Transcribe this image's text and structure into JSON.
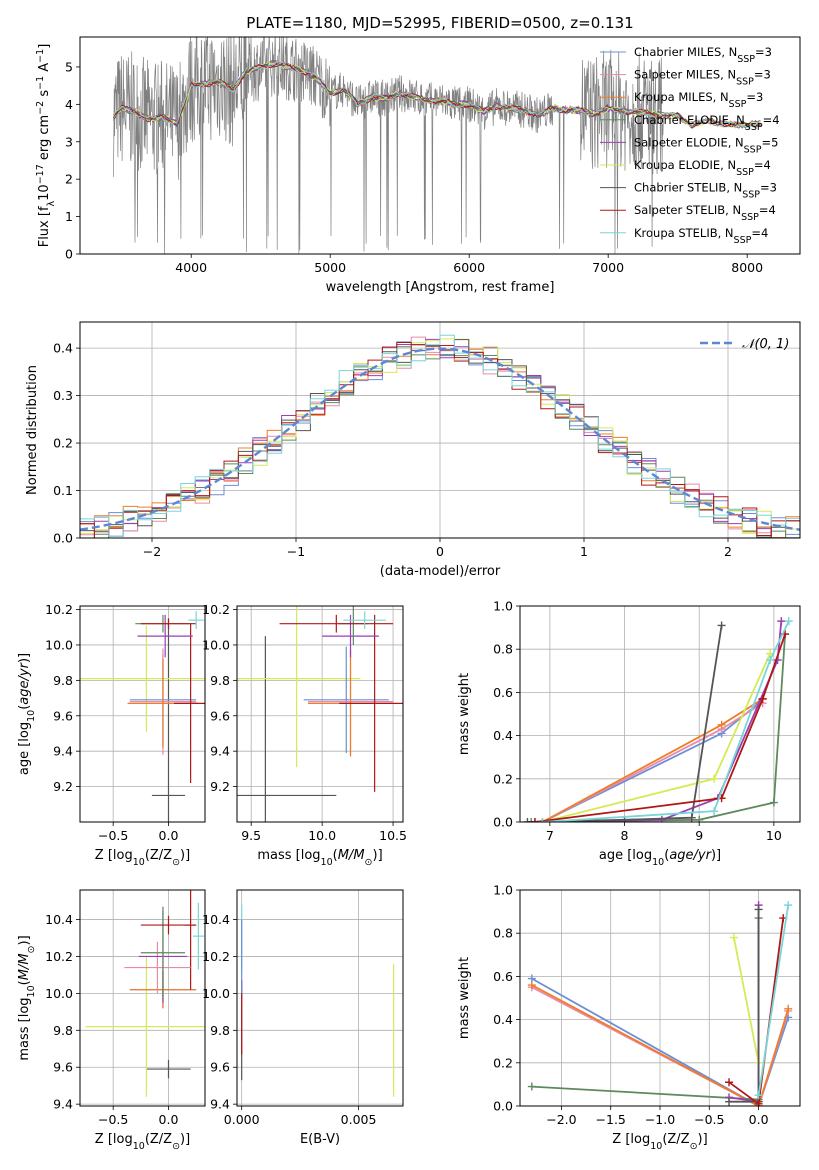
{
  "title": "PLATE=1180, MJD=52995, FIBERID=0500, z=0.131",
  "colors": {
    "Chabrier MILES": "#6a8fd8",
    "Salpeter MILES": "#e98aa8",
    "Kroupa MILES": "#f07c2a",
    "Chabrier ELODIE": "#5e8a5e",
    "Salpeter ELODIE": "#9b3fb3",
    "Kroupa ELODIE": "#d6ea55",
    "Chabrier STELIB": "#555555",
    "Salpeter STELIB": "#b01818",
    "Kroupa STELIB": "#79d6d8"
  },
  "chart_data": [
    {
      "id": "spectrum",
      "type": "line",
      "title": "PLATE=1180, MJD=52995, FIBERID=0500, z=0.131",
      "xlabel": "wavelength [Angstrom, rest frame]",
      "ylabel_parts": {
        "pre": "Flux [f",
        "sub": "λ",
        "mid": "10",
        "sup1": "−17",
        "mid2": " erg cm",
        "sup2": "−2",
        "mid3": " s",
        "sup3": "−1",
        "mid4": " A",
        "sup4": "−1",
        "post": "]"
      },
      "xlim": [
        3200,
        8380
      ],
      "ylim": [
        0,
        5.8
      ],
      "xticks": [
        4000,
        5000,
        6000,
        7000,
        8000
      ],
      "yticks": [
        0,
        1,
        2,
        3,
        4,
        5
      ],
      "grid": false,
      "legend_placement": "top-right",
      "legend": [
        {
          "pre": "Chabrier MILES, N",
          "sub": "SSP",
          "post": "=3"
        },
        {
          "pre": "Salpeter MILES, N",
          "sub": "SSP",
          "post": "=3"
        },
        {
          "pre": "Kroupa MILES, N",
          "sub": "SSP",
          "post": "=3"
        },
        {
          "pre": "Chabrier ELODIE, N",
          "sub": "SSP",
          "post": "=4"
        },
        {
          "pre": "Salpeter ELODIE, N",
          "sub": "SSP",
          "post": "=5"
        },
        {
          "pre": "Kroupa ELODIE, N",
          "sub": "SSP",
          "post": "=4"
        },
        {
          "pre": "Chabrier STELIB, N",
          "sub": "SSP",
          "post": "=3"
        },
        {
          "pre": "Salpeter STELIB, N",
          "sub": "SSP",
          "post": "=4"
        },
        {
          "pre": "Kroupa STELIB, N",
          "sub": "SSP",
          "post": "=4"
        }
      ],
      "model_continuum": {
        "x": [
          3400,
          3500,
          3600,
          3700,
          3800,
          3900,
          4000,
          4100,
          4200,
          4300,
          4400,
          4500,
          4600,
          4700,
          4800,
          4900,
          5000,
          5100,
          5200,
          5300,
          5400,
          5500,
          5600,
          5700,
          5800,
          5900,
          6000,
          6100,
          6200,
          6300,
          6400,
          6500,
          6600,
          6700,
          6800,
          6900,
          7000,
          7100,
          7200,
          7300,
          7400,
          7500,
          7600,
          7700,
          7800,
          7900,
          8000,
          8100
        ],
        "y": [
          3.5,
          3.9,
          3.8,
          3.6,
          3.65,
          3.5,
          4.5,
          4.55,
          4.6,
          4.4,
          4.9,
          5.0,
          5.1,
          5.0,
          4.9,
          4.7,
          4.3,
          4.4,
          4.0,
          4.2,
          4.15,
          4.3,
          4.2,
          4.1,
          4.1,
          4.0,
          4.0,
          3.8,
          3.95,
          3.9,
          3.85,
          3.7,
          3.9,
          3.85,
          3.85,
          3.75,
          3.9,
          3.8,
          3.8,
          3.75,
          3.7,
          3.7,
          3.45,
          3.55,
          3.5,
          3.45,
          3.45,
          3.5
        ]
      }
    },
    {
      "id": "residuals",
      "type": "step",
      "xlabel": "(data-model)/error",
      "ylabel": "Normed distribution",
      "xlim": [
        -2.5,
        2.5
      ],
      "ylim": [
        0,
        0.455
      ],
      "xticks": [
        -2,
        -1,
        0,
        1,
        2
      ],
      "yticks": [
        0.0,
        0.1,
        0.2,
        0.3,
        0.4
      ],
      "grid": true,
      "legend_placement": "top-right",
      "normal_label": "𝒩(0, 1)",
      "normal_color": "#5b88d6"
    },
    {
      "id": "age-vs-Z",
      "type": "errorbar",
      "xlabel_parts": {
        "pre": "Z [log",
        "sub": "10",
        "mid": "(Z/Z",
        "sub2": "⊙",
        "post": ")]"
      },
      "ylabel_parts": {
        "pre": "age  [log",
        "sub": "10",
        "mid": "(",
        "it": "age/yr",
        "post": ")]"
      },
      "xlim": [
        -0.8,
        0.33
      ],
      "ylim": [
        9.0,
        10.22
      ],
      "xticks": [
        -0.5,
        0.0
      ],
      "yticks": [
        9.2,
        9.4,
        9.6,
        9.8,
        10.0,
        10.2
      ],
      "grid": true,
      "points": [
        {
          "s": "Chabrier STELIB",
          "x": 0.0,
          "xe": 0.15,
          "y": 9.15,
          "ye": 1.0
        },
        {
          "s": "Kroupa ELODIE",
          "x": -0.2,
          "xe": 0.6,
          "y": 9.81,
          "ye": 0.3
        },
        {
          "s": "Chabrier MILES",
          "x": -0.05,
          "xe": 0.3,
          "y": 9.69,
          "ye": 0.26
        },
        {
          "s": "Salpeter MILES",
          "x": -0.05,
          "xe": 0.3,
          "y": 9.68,
          "ye": 0.3
        },
        {
          "s": "Kroupa MILES",
          "x": -0.05,
          "xe": 0.32,
          "y": 9.67,
          "ye": 0.25
        },
        {
          "s": "Salpeter STELIB",
          "x": 0.2,
          "xe": 0.15,
          "y": 9.67,
          "ye": 0.45
        },
        {
          "s": "Salpeter ELODIE",
          "x": -0.03,
          "xe": 0.25,
          "y": 10.05,
          "ye": 0.12
        },
        {
          "s": "Chabrier ELODIE",
          "x": -0.05,
          "xe": 0.25,
          "y": 10.12,
          "ye": 0.05
        },
        {
          "s": "Salpeter STELIB",
          "x": 0.0,
          "xe": 0.25,
          "y": 10.12,
          "ye": 0.03
        },
        {
          "s": "Kroupa STELIB",
          "x": 0.25,
          "xe": 0.07,
          "y": 10.14,
          "ye": 0.05
        }
      ]
    },
    {
      "id": "age-vs-mass",
      "type": "errorbar",
      "xlabel_parts": {
        "pre": "mass [log",
        "sub": "10",
        "mid": "(",
        "it": "M/M",
        "sub2": "⊙",
        "post": ")]"
      },
      "xlim": [
        9.4,
        10.57
      ],
      "ylim": [
        9.0,
        10.22
      ],
      "xticks": [
        9.5,
        10.0,
        10.5
      ],
      "yticks": [
        9.2,
        9.4,
        9.6,
        9.8,
        10.0,
        10.2
      ],
      "grid": true,
      "points": [
        {
          "s": "Chabrier STELIB",
          "x": 9.6,
          "xe": 0.5,
          "y": 9.15,
          "ye": 0.9
        },
        {
          "s": "Kroupa ELODIE",
          "x": 9.82,
          "xe": 0.45,
          "y": 9.81,
          "ye": 0.5
        },
        {
          "s": "Chabrier MILES",
          "x": 10.17,
          "xe": 0.3,
          "y": 9.69,
          "ye": 0.3
        },
        {
          "s": "Salpeter MILES",
          "x": 10.2,
          "xe": 0.3,
          "y": 9.68,
          "ye": 0.3
        },
        {
          "s": "Kroupa MILES",
          "x": 10.2,
          "xe": 0.3,
          "y": 9.67,
          "ye": 0.3
        },
        {
          "s": "Salpeter STELIB",
          "x": 10.37,
          "xe": 0.25,
          "y": 9.67,
          "ye": 0.5
        },
        {
          "s": "Salpeter ELODIE",
          "x": 10.2,
          "xe": 0.2,
          "y": 10.05,
          "ye": 0.12
        },
        {
          "s": "Chabrier ELODIE",
          "x": 10.22,
          "xe": 0.1,
          "y": 10.12,
          "ye": 0.12
        },
        {
          "s": "Salpeter STELIB",
          "x": 10.1,
          "xe": 0.4,
          "y": 10.12,
          "ye": 0.05
        },
        {
          "s": "Kroupa STELIB",
          "x": 10.3,
          "xe": 0.15,
          "y": 10.14,
          "ye": 0.05
        }
      ]
    },
    {
      "id": "weight-vs-age",
      "type": "line",
      "xlabel_parts": {
        "pre": "age  [log",
        "sub": "10",
        "mid": "(",
        "it": "age/yr",
        "post": ")]"
      },
      "ylabel": "mass weight",
      "xlim": [
        6.6,
        10.35
      ],
      "ylim": [
        0,
        1.0
      ],
      "xticks": [
        7,
        8,
        9,
        10
      ],
      "yticks": [
        0.0,
        0.2,
        0.4,
        0.6,
        0.8,
        1.0
      ],
      "grid": true,
      "series": [
        {
          "s": "Chabrier MILES",
          "x": [
            6.9,
            9.3,
            9.8
          ],
          "y": [
            0.0,
            0.41,
            0.55
          ]
        },
        {
          "s": "Salpeter MILES",
          "x": [
            6.9,
            9.3,
            9.85
          ],
          "y": [
            0.0,
            0.43,
            0.55
          ]
        },
        {
          "s": "Kroupa MILES",
          "x": [
            6.9,
            9.3,
            9.85
          ],
          "y": [
            0.0,
            0.45,
            0.57
          ]
        },
        {
          "s": "Chabrier ELODIE",
          "x": [
            6.75,
            9.0,
            10.0,
            10.15
          ],
          "y": [
            0.0,
            0.01,
            0.09,
            0.87
          ]
        },
        {
          "s": "Salpeter ELODIE",
          "x": [
            6.8,
            8.5,
            9.25,
            10.05,
            10.1
          ],
          "y": [
            0.0,
            0.01,
            0.11,
            0.75,
            0.93
          ]
        },
        {
          "s": "Kroupa ELODIE",
          "x": [
            6.9,
            9.2,
            9.95
          ],
          "y": [
            0.0,
            0.2,
            0.78
          ]
        },
        {
          "s": "Chabrier STELIB",
          "x": [
            6.7,
            8.0,
            8.9,
            9.3
          ],
          "y": [
            0.0,
            0.01,
            0.02,
            0.91
          ]
        },
        {
          "s": "Salpeter STELIB",
          "x": [
            6.8,
            9.3,
            9.85,
            10.15
          ],
          "y": [
            0.0,
            0.11,
            0.57,
            0.87
          ]
        },
        {
          "s": "Kroupa STELIB",
          "x": [
            6.9,
            9.2,
            9.95,
            10.2
          ],
          "y": [
            0.0,
            0.05,
            0.75,
            0.93
          ]
        }
      ]
    },
    {
      "id": "mass-vs-Z",
      "type": "errorbar",
      "xlabel_parts": {
        "pre": "Z [log",
        "sub": "10",
        "mid": "(Z/Z",
        "sub2": "⊙",
        "post": ")]"
      },
      "ylabel_parts": {
        "pre": "mass [log",
        "sub": "10",
        "mid": "(",
        "it": "M/M",
        "sub2": "⊙",
        "post": ")]"
      },
      "xlim": [
        -0.8,
        0.33
      ],
      "ylim": [
        9.39,
        10.56
      ],
      "xticks": [
        -0.5,
        0.0
      ],
      "yticks": [
        9.4,
        9.6,
        9.8,
        10.0,
        10.2,
        10.4
      ],
      "grid": true,
      "points": [
        {
          "s": "Chabrier STELIB",
          "x": 0.0,
          "xe": 0.2,
          "y": 9.59,
          "ye": 0.05
        },
        {
          "s": "Kroupa ELODIE",
          "x": -0.2,
          "xe": 0.55,
          "y": 9.82,
          "ye": 0.38
        },
        {
          "s": "Chabrier MILES",
          "x": -0.05,
          "xe": 0.3,
          "y": 10.02,
          "ye": 0.1
        },
        {
          "s": "Salpeter MILES",
          "x": -0.05,
          "xe": 0.25,
          "y": 10.02,
          "ye": 0.1
        },
        {
          "s": "Kroupa MILES",
          "x": -0.05,
          "xe": 0.3,
          "y": 10.02,
          "ye": 0.1
        },
        {
          "s": "Salpeter STELIB",
          "x": 0.2,
          "xe": 0.05,
          "y": 10.37,
          "ye": 0.35
        },
        {
          "s": "Salpeter MILES",
          "x": -0.1,
          "xe": 0.3,
          "y": 10.14,
          "ye": 0.14
        },
        {
          "s": "Salpeter ELODIE",
          "x": -0.05,
          "xe": 0.22,
          "y": 10.2,
          "ye": 0.25
        },
        {
          "s": "Chabrier ELODIE",
          "x": -0.05,
          "xe": 0.2,
          "y": 10.22,
          "ye": 0.25
        },
        {
          "s": "Kroupa STELIB",
          "x": 0.27,
          "xe": 0.05,
          "y": 10.31,
          "ye": 0.18
        },
        {
          "s": "Salpeter STELIB",
          "x": 0.0,
          "xe": 0.25,
          "y": 10.37,
          "ye": 0.05
        }
      ]
    },
    {
      "id": "mass-vs-ebv",
      "type": "errorbar",
      "xlabel": "E(B-V)",
      "xlim": [
        -0.0002,
        0.0069
      ],
      "ylim": [
        9.39,
        10.56
      ],
      "xticks": [
        0.0,
        0.005
      ],
      "xtick_labels": [
        "0.000",
        "0.005"
      ],
      "yticks": [
        9.4,
        9.6,
        9.8,
        10.0,
        10.2,
        10.4
      ],
      "grid": true,
      "points": [
        {
          "s": "Chabrier STELIB",
          "x": 0.0,
          "xe": 0.0,
          "y": 9.8,
          "ye": 0.27
        },
        {
          "s": "Salpeter STELIB",
          "x": 0.0,
          "xe": 0.0,
          "y": 9.87,
          "ye": 0.2
        },
        {
          "s": "Kroupa STELIB",
          "x": 0.0,
          "xe": 0.0,
          "y": 10.3,
          "ye": 0.18
        },
        {
          "s": "Chabrier MILES",
          "x": 0.0,
          "xe": 0.0,
          "y": 10.2,
          "ye": 0.2
        },
        {
          "s": "Kroupa ELODIE",
          "x": 0.0065,
          "xe": 0.0,
          "y": 9.8,
          "ye": 0.36
        }
      ]
    },
    {
      "id": "weight-vs-Z",
      "type": "line",
      "xlabel_parts": {
        "pre": "Z [log",
        "sub": "10",
        "mid": "(Z/Z",
        "sub2": "⊙",
        "post": ")]"
      },
      "ylabel": "mass weight",
      "xlim": [
        -2.42,
        0.42
      ],
      "ylim": [
        0,
        1.0
      ],
      "xticks": [
        -2.0,
        -1.5,
        -1.0,
        -0.5,
        0.0
      ],
      "yticks": [
        0.0,
        0.2,
        0.4,
        0.6,
        0.8,
        1.0
      ],
      "grid": true,
      "series": [
        {
          "s": "Chabrier MILES",
          "x": [
            -2.3,
            0.0,
            0.3
          ],
          "y": [
            0.59,
            0.0,
            0.41
          ]
        },
        {
          "s": "Salpeter MILES",
          "x": [
            -2.3,
            0.0,
            0.3
          ],
          "y": [
            0.55,
            0.0,
            0.44
          ]
        },
        {
          "s": "Kroupa MILES",
          "x": [
            -2.3,
            0.0,
            0.3
          ],
          "y": [
            0.56,
            0.0,
            0.45
          ]
        },
        {
          "s": "Chabrier ELODIE",
          "x": [
            -2.3,
            0.0,
            0.0
          ],
          "y": [
            0.09,
            0.03,
            0.87
          ]
        },
        {
          "s": "Salpeter ELODIE",
          "x": [
            -0.3,
            0.0,
            0.0
          ],
          "y": [
            0.04,
            0.02,
            0.93
          ]
        },
        {
          "s": "Kroupa ELODIE",
          "x": [
            -0.25,
            0.0
          ],
          "y": [
            0.78,
            0.2
          ]
        },
        {
          "s": "Chabrier STELIB",
          "x": [
            -0.3,
            0.0,
            0.0
          ],
          "y": [
            0.02,
            0.02,
            0.91
          ]
        },
        {
          "s": "Salpeter STELIB",
          "x": [
            -0.3,
            0.0,
            0.25
          ],
          "y": [
            0.11,
            0.01,
            0.87
          ]
        },
        {
          "s": "Kroupa STELIB",
          "x": [
            0.0,
            0.3
          ],
          "y": [
            0.05,
            0.93
          ]
        }
      ]
    }
  ]
}
